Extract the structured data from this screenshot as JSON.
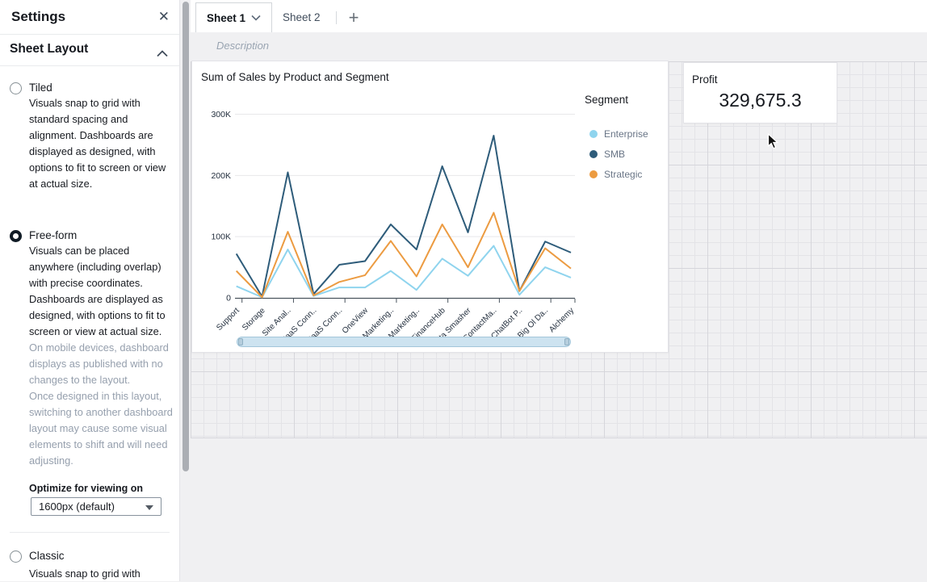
{
  "sidebar": {
    "title": "Settings",
    "section_title": "Sheet Layout",
    "options": [
      {
        "label": "Tiled",
        "selected": false,
        "description": "Visuals snap to grid with standard spacing and alignment. Dashboards are displayed as designed, with options to fit to screen or view at actual size."
      },
      {
        "label": "Free-form",
        "selected": true,
        "description": "Visuals can be placed anywhere (including overlap) with precise coordinates. Dashboards are displayed as designed, with options to fit to screen or view at actual size.",
        "note1": "On mobile devices, dashboard displays as published with no changes to the layout.",
        "note2": "Once designed in this layout, switching to another dashboard layout may cause some visual elements to shift and will need adjusting."
      },
      {
        "label": "Classic",
        "selected": false,
        "description": "Visuals snap to grid with"
      }
    ],
    "optimize_label": "Optimize for viewing on",
    "optimize_value": "1600px (default)"
  },
  "tabs": {
    "items": [
      {
        "label": "Sheet 1",
        "active": true
      },
      {
        "label": "Sheet 2",
        "active": false
      }
    ],
    "add_label": "+"
  },
  "description_bar": {
    "placeholder": "Description"
  },
  "chart_data": {
    "type": "line",
    "title": "Sum of Sales by Product and Segment",
    "legend_title": "Segment",
    "legend_position": "right",
    "grid": true,
    "xlabel": "",
    "ylabel": "",
    "ylim": [
      0,
      300000
    ],
    "yticks": [
      {
        "label": "0",
        "value": 0
      },
      {
        "label": "100K",
        "value": 100
      },
      {
        "label": "200K",
        "value": 200
      },
      {
        "label": "300K",
        "value": 300
      }
    ],
    "value_unit": "thousands",
    "categories": [
      "Support",
      "Storage",
      "Site Anal..",
      "SaaS Conn..",
      "SaaS Conn..",
      "OneView",
      "Marketing..",
      "Marketing..",
      "FinanceHub",
      "Data Smasher",
      "ContactMa..",
      "ChatBot P..",
      "Big Ol Da..",
      "Alchemy"
    ],
    "series": [
      {
        "name": "Enterprise",
        "color": "#8fd4ee",
        "values": [
          19,
          1,
          79,
          3,
          17,
          17,
          44,
          13,
          64,
          36,
          85,
          5,
          50,
          33
        ]
      },
      {
        "name": "SMB",
        "color": "#2e5c7a",
        "values": [
          72,
          2,
          205,
          6,
          54,
          60,
          120,
          79,
          215,
          107,
          265,
          11,
          92,
          74
        ]
      },
      {
        "name": "Strategic",
        "color": "#ec9b41",
        "values": [
          44,
          1,
          108,
          4,
          26,
          37,
          93,
          35,
          120,
          50,
          139,
          11,
          81,
          48
        ]
      }
    ]
  },
  "kpi": {
    "title": "Profit",
    "value": "329,675.3"
  }
}
